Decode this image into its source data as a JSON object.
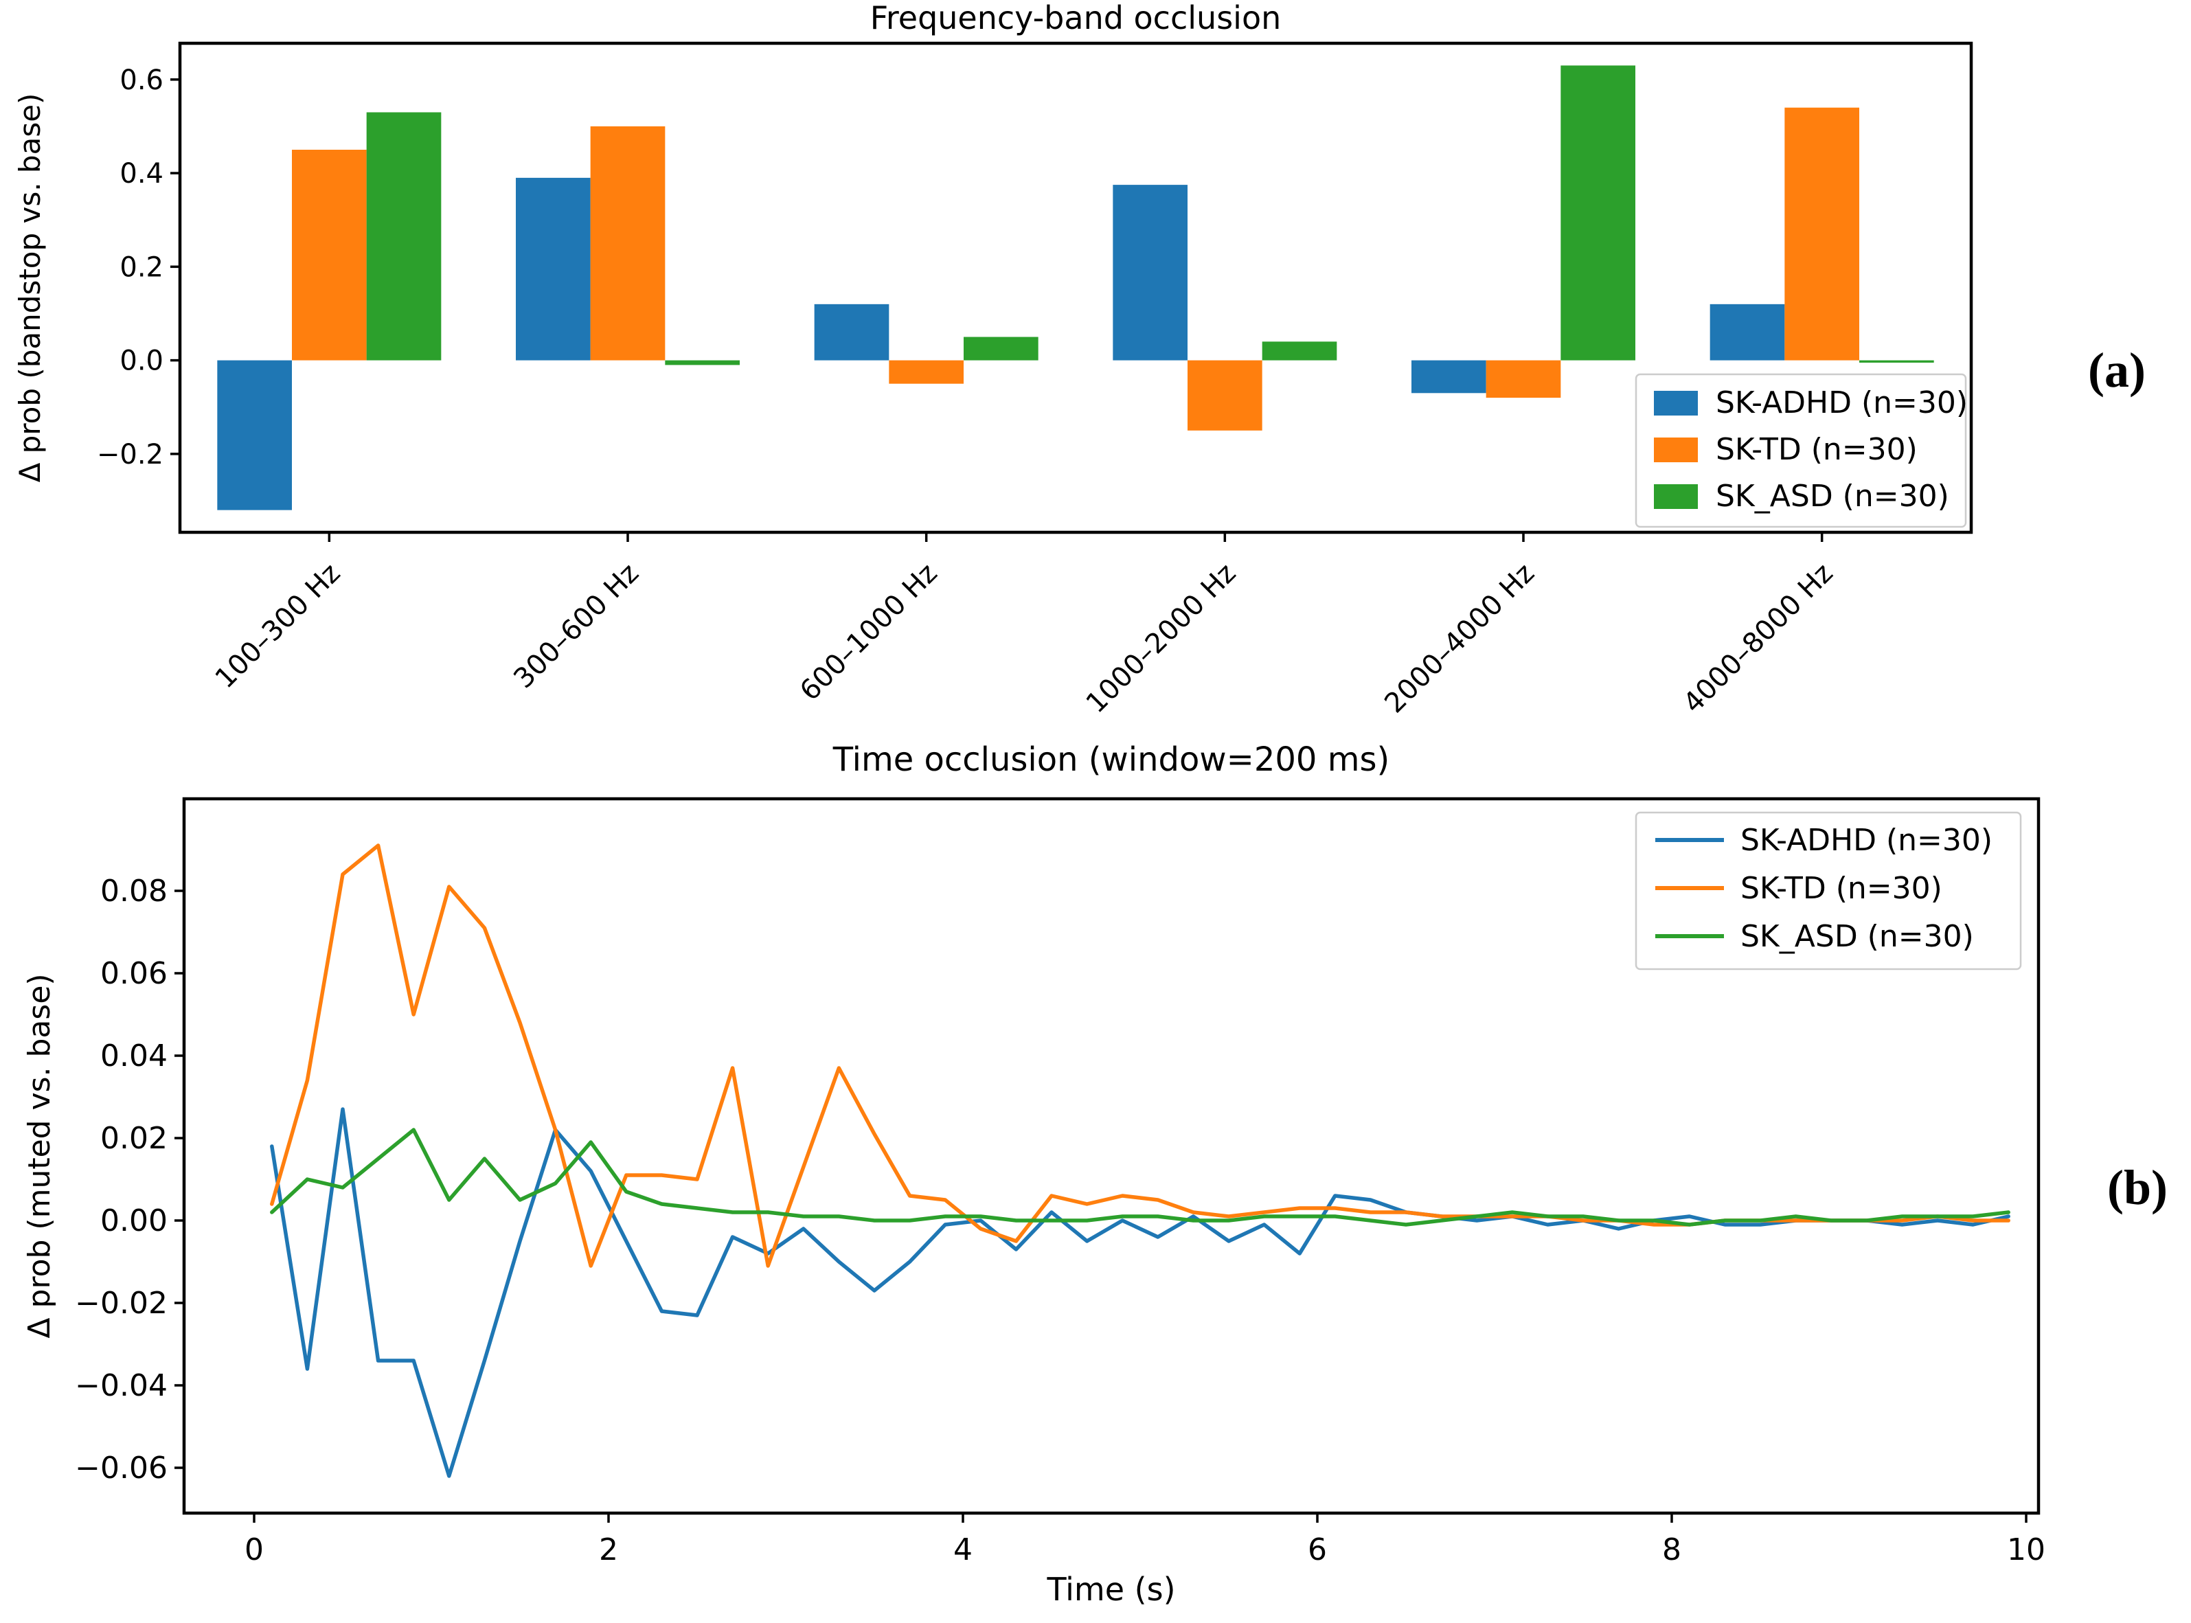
{
  "figure": {
    "background": "#ffffff",
    "panel_a_label": "(a)",
    "panel_b_label": "(b)"
  },
  "colors": {
    "sk_adhd": "#1f77b4",
    "sk_td": "#ff7f0e",
    "sk_asd": "#2ca02c",
    "spine": "#000000",
    "text": "#000000",
    "legend_border": "#cccccc",
    "legend_bg": "#ffffff"
  },
  "legend_labels": [
    "SK-ADHD (n=30)",
    "SK-TD (n=30)",
    "SK_ASD (n=30)"
  ],
  "chart_data": [
    {
      "type": "bar",
      "title": "Frequency-band occlusion",
      "xlabel": "",
      "ylabel": "Δ prob (bandstop vs. base)",
      "categories": [
        "100–300 Hz",
        "300–600 Hz",
        "600–1000 Hz",
        "1000–2000 Hz",
        "2000–4000 Hz",
        "4000–8000 Hz"
      ],
      "series": [
        {
          "name": "SK-ADHD (n=30)",
          "color_key": "sk_adhd",
          "values": [
            -0.32,
            0.39,
            0.12,
            0.375,
            -0.07,
            0.12
          ]
        },
        {
          "name": "SK-TD (n=30)",
          "color_key": "sk_td",
          "values": [
            0.45,
            0.5,
            -0.05,
            -0.15,
            -0.08,
            0.54
          ]
        },
        {
          "name": "SK_ASD (n=30)",
          "color_key": "sk_asd",
          "values": [
            0.53,
            -0.01,
            0.05,
            0.04,
            0.63,
            -0.005
          ]
        }
      ],
      "ylim": [
        -0.3675,
        0.6775
      ],
      "yticks": [
        0.6,
        0.4,
        0.2,
        0.0,
        -0.2
      ],
      "grid": false,
      "legend_position": "lower right",
      "x_tick_rotation_deg": 45
    },
    {
      "type": "line",
      "title": "Time occlusion (window=200 ms)",
      "xlabel": "Time (s)",
      "ylabel": "Δ prob (muted vs. base)",
      "x": [
        0.1,
        0.3,
        0.5,
        0.7,
        0.9,
        1.1,
        1.3,
        1.5,
        1.7,
        1.9,
        2.1,
        2.3,
        2.5,
        2.7,
        2.9,
        3.1,
        3.3,
        3.5,
        3.7,
        3.9,
        4.1,
        4.3,
        4.5,
        4.7,
        4.9,
        5.1,
        5.3,
        5.5,
        5.7,
        5.9,
        6.1,
        6.3,
        6.5,
        6.7,
        6.9,
        7.1,
        7.3,
        7.5,
        7.7,
        7.9,
        8.1,
        8.3,
        8.5,
        8.7,
        8.9,
        9.1,
        9.3,
        9.5,
        9.7,
        9.9
      ],
      "series": [
        {
          "name": "SK-ADHD (n=30)",
          "color_key": "sk_adhd",
          "values": [
            0.018,
            -0.036,
            0.027,
            -0.034,
            -0.034,
            -0.062,
            -0.034,
            -0.005,
            0.022,
            0.012,
            -0.005,
            -0.022,
            -0.023,
            -0.004,
            -0.008,
            -0.002,
            -0.01,
            -0.017,
            -0.01,
            -0.001,
            0.0,
            -0.007,
            0.002,
            -0.005,
            0.0,
            -0.004,
            0.001,
            -0.005,
            -0.001,
            -0.008,
            0.006,
            0.005,
            0.002,
            0.001,
            0.0,
            0.001,
            -0.001,
            0.0,
            -0.002,
            0.0,
            0.001,
            -0.001,
            -0.001,
            0.0,
            0.0,
            0.0,
            -0.001,
            0.0,
            -0.001,
            0.001
          ]
        },
        {
          "name": "SK-TD (n=30)",
          "color_key": "sk_td",
          "values": [
            0.004,
            0.034,
            0.084,
            0.091,
            0.05,
            0.081,
            0.071,
            0.048,
            0.022,
            -0.011,
            0.011,
            0.011,
            0.01,
            0.037,
            -0.011,
            0.013,
            0.037,
            0.021,
            0.006,
            0.005,
            -0.002,
            -0.005,
            0.006,
            0.004,
            0.006,
            0.005,
            0.002,
            0.001,
            0.002,
            0.003,
            0.003,
            0.002,
            0.002,
            0.001,
            0.001,
            0.001,
            0.001,
            0.0,
            0.0,
            -0.001,
            -0.001,
            0.0,
            0.0,
            0.0,
            0.0,
            0.0,
            0.0,
            0.001,
            0.0,
            0.0
          ]
        },
        {
          "name": "SK_ASD (n=30)",
          "color_key": "sk_asd",
          "values": [
            0.002,
            0.01,
            0.008,
            0.015,
            0.022,
            0.005,
            0.015,
            0.005,
            0.009,
            0.019,
            0.007,
            0.004,
            0.003,
            0.002,
            0.002,
            0.001,
            0.001,
            0.0,
            0.0,
            0.001,
            0.001,
            0.0,
            0.0,
            0.0,
            0.001,
            0.001,
            0.0,
            0.0,
            0.001,
            0.001,
            0.001,
            0.0,
            -0.001,
            0.0,
            0.001,
            0.002,
            0.001,
            0.001,
            0.0,
            0.0,
            -0.001,
            0.0,
            0.0,
            0.001,
            0.0,
            0.0,
            0.001,
            0.001,
            0.001,
            0.002
          ]
        }
      ],
      "xlim": [
        -0.39,
        10.07
      ],
      "ylim": [
        -0.071,
        0.102
      ],
      "xticks": [
        0,
        2,
        4,
        6,
        8,
        10
      ],
      "yticks": [
        0.08,
        0.06,
        0.04,
        0.02,
        0.0,
        -0.02,
        -0.04,
        -0.06
      ],
      "grid": false,
      "legend_position": "upper right"
    }
  ]
}
